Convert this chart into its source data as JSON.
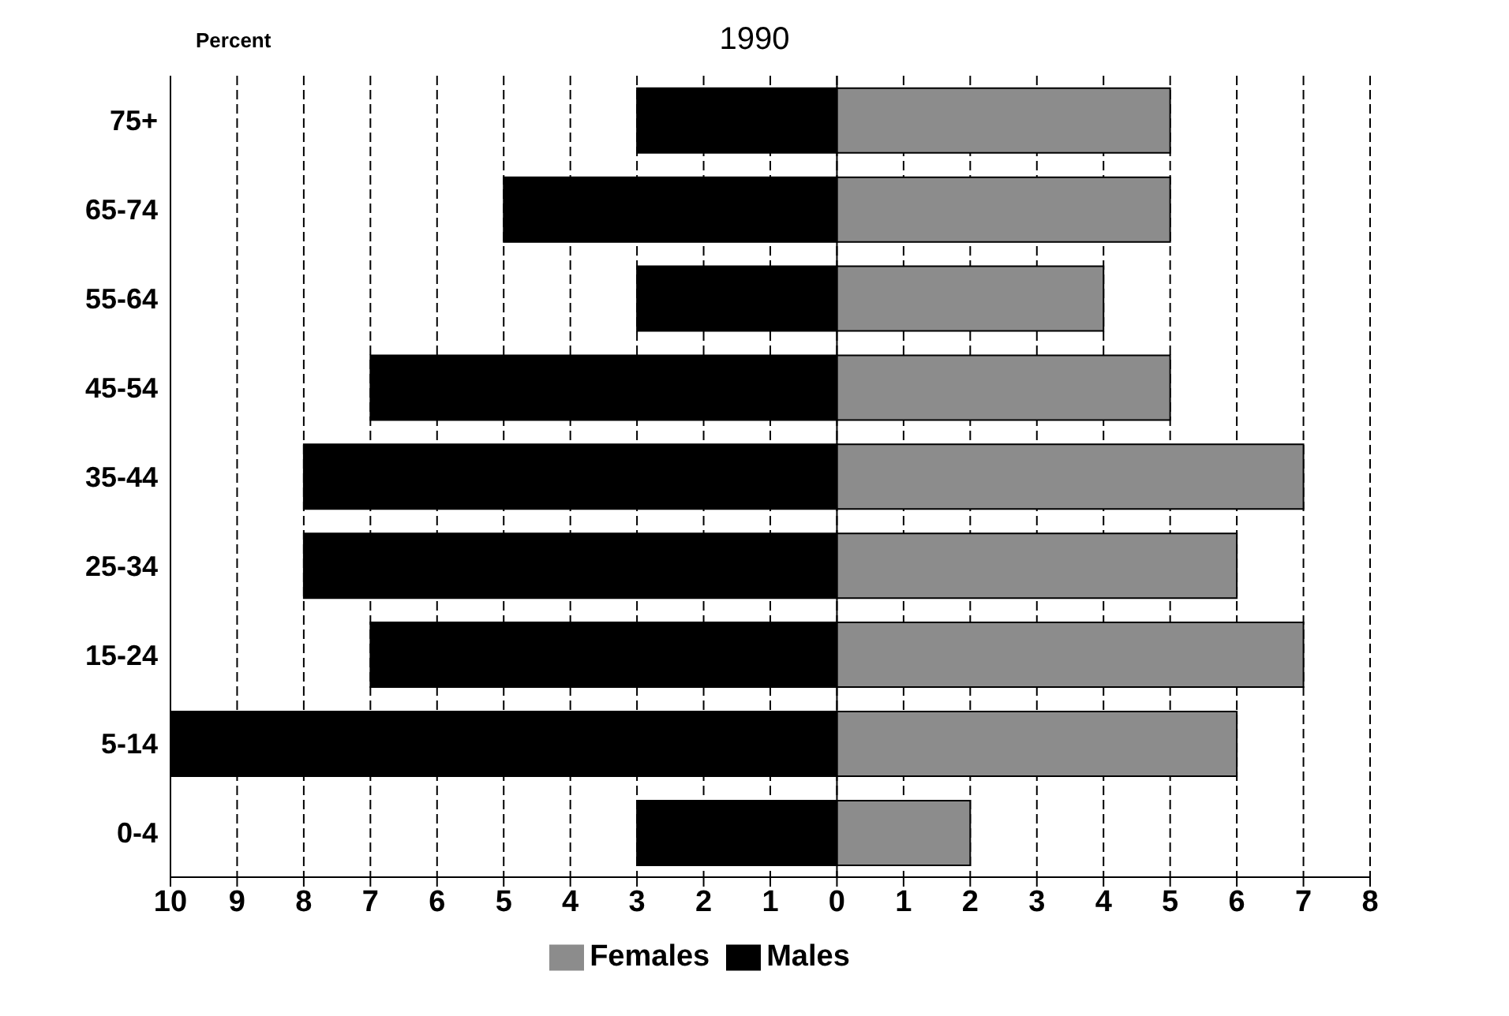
{
  "chart_data": {
    "type": "bar",
    "orientation": "horizontal",
    "stacked": true,
    "title": "1990",
    "xlabel": "Percent",
    "categories": [
      "75+",
      "65-74",
      "55-64",
      "45-54",
      "35-44",
      "25-34",
      "15-24",
      "5-14",
      "0-4"
    ],
    "series": [
      {
        "name": "Males",
        "color": "#000000",
        "values": [
          -3,
          -5,
          -3,
          -7,
          -8,
          -8,
          -7,
          -10,
          -3
        ]
      },
      {
        "name": "Females",
        "color": "#8c8c8c",
        "values": [
          5,
          5,
          4,
          5,
          7,
          6,
          7,
          6,
          2
        ]
      }
    ],
    "xlim": [
      -10,
      8
    ],
    "xticks": [
      {
        "value": -10,
        "label": "10"
      },
      {
        "value": -9,
        "label": "9"
      },
      {
        "value": -8,
        "label": "8"
      },
      {
        "value": -7,
        "label": "7"
      },
      {
        "value": -6,
        "label": "6"
      },
      {
        "value": -5,
        "label": "5"
      },
      {
        "value": -4,
        "label": "4"
      },
      {
        "value": -3,
        "label": "3"
      },
      {
        "value": -2,
        "label": "2"
      },
      {
        "value": -1,
        "label": "1"
      },
      0,
      1,
      2,
      3,
      4,
      5,
      6,
      7,
      8
    ],
    "grid": "x",
    "legend": "bottom"
  }
}
